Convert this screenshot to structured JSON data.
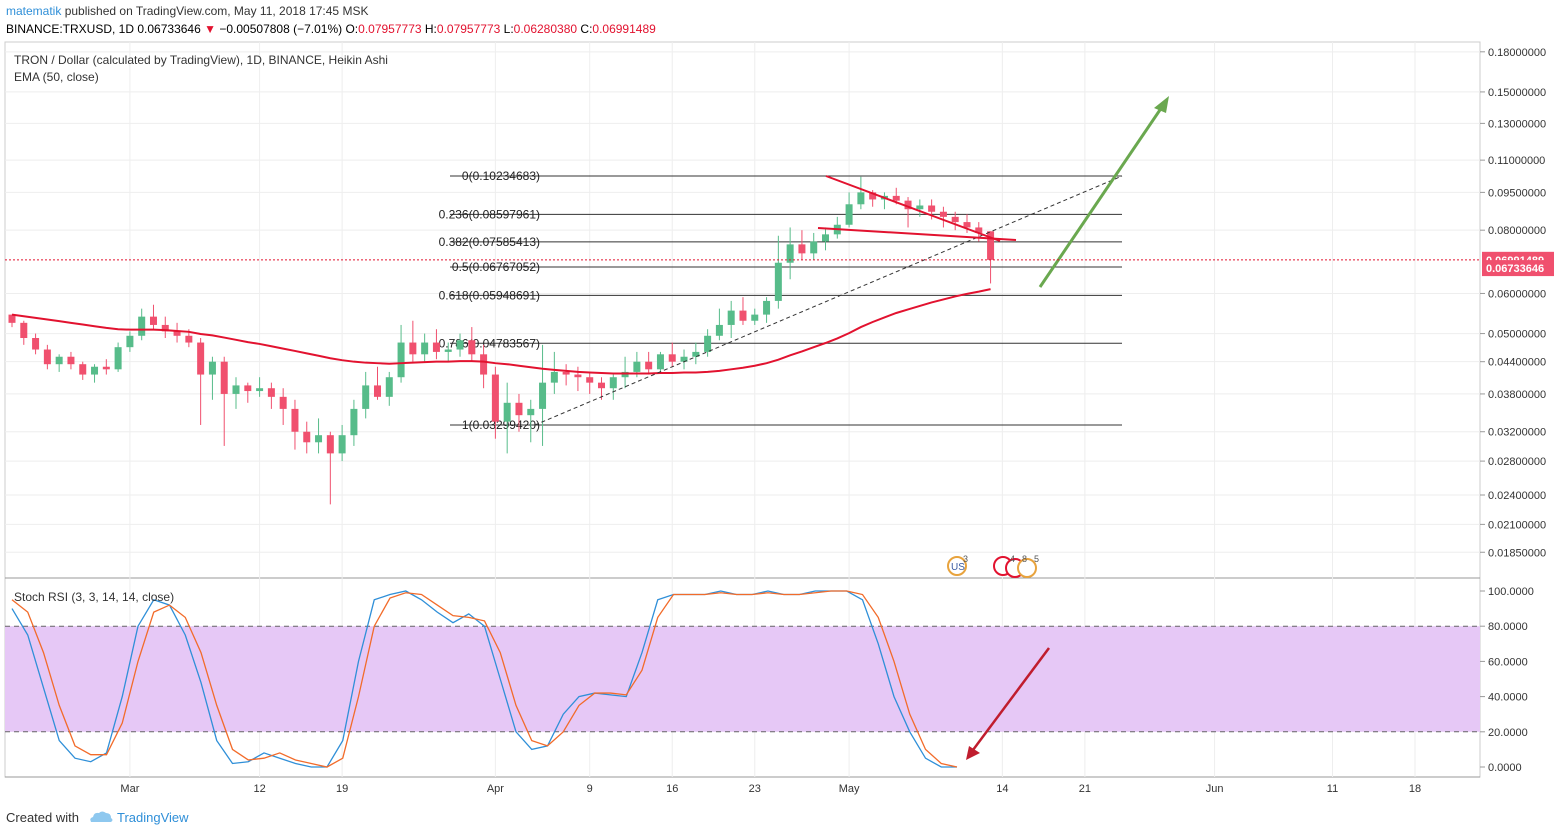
{
  "header": {
    "publisher": "matematik",
    "published_text": "published on TradingView.com, May 11, 2018 17:45 MSK",
    "symbol": "BINANCE:TRXUSD, 1D",
    "last": "0.06733646",
    "change_arrow": "▼",
    "change": "−0.00507808 (−7.01%)",
    "ohlc": {
      "o_label": "O:",
      "o": "0.07957773",
      "h_label": "H:",
      "h": "0.07957773",
      "l_label": "L:",
      "l": "0.06280380",
      "c_label": "C:",
      "c": "0.06991489"
    }
  },
  "legend": {
    "title": "TRON / Dollar (calculated by TradingView), 1D, BINANCE, Heikin Ashi",
    "ema": "EMA (50, close)",
    "stoch": "Stoch RSI (3, 3, 14, 14, close)"
  },
  "footer": {
    "created_with": "Created with",
    "brand": "TradingView"
  },
  "colors": {
    "up": "#57bc8a",
    "down": "#f0506e",
    "ema": "#e2122f",
    "k_line": "#2f8fd8",
    "d_line": "#f26b2a",
    "band": "#e6c8f6",
    "fib": "#333333",
    "arrow_up": "#6aa84f",
    "arrow_down": "#c01d2e"
  },
  "chart_data": [
    {
      "type": "candlestick",
      "title": "TRON / Dollar (calculated by TradingView), 1D, BINANCE, Heikin Ashi",
      "y_scale": "log",
      "y_ticks": [
        "0.18000000",
        "0.15000000",
        "0.13000000",
        "0.11000000",
        "0.09500000",
        "0.08000000",
        "0.06000000",
        "0.05000000",
        "0.04400000",
        "0.03800000",
        "0.03200000",
        "0.02800000",
        "0.02400000",
        "0.02100000",
        "0.01850000"
      ],
      "x_ticks": [
        "Mar",
        "12",
        "19",
        "Apr",
        "9",
        "16",
        "23",
        "May",
        "14",
        "21",
        "Jun",
        "11",
        "18"
      ],
      "price_labels": [
        "0.06991489",
        "0.06733646"
      ],
      "current_price_line": 0.0699,
      "start_date": "2018-02-19",
      "candles": [
        [
          0.0545,
          0.0545,
          0.0515,
          0.0525
        ],
        [
          0.0525,
          0.053,
          0.0475,
          0.049
        ],
        [
          0.049,
          0.05,
          0.0455,
          0.0465
        ],
        [
          0.0465,
          0.0475,
          0.0425,
          0.0435
        ],
        [
          0.0435,
          0.0455,
          0.042,
          0.045
        ],
        [
          0.045,
          0.046,
          0.0425,
          0.0435
        ],
        [
          0.0435,
          0.044,
          0.0405,
          0.0415
        ],
        [
          0.0415,
          0.0435,
          0.04,
          0.043
        ],
        [
          0.043,
          0.0445,
          0.0415,
          0.0425
        ],
        [
          0.0425,
          0.048,
          0.042,
          0.047
        ],
        [
          0.047,
          0.0505,
          0.046,
          0.0495
        ],
        [
          0.0495,
          0.056,
          0.0485,
          0.054
        ],
        [
          0.054,
          0.057,
          0.051,
          0.052
        ],
        [
          0.052,
          0.054,
          0.049,
          0.0505
        ],
        [
          0.0505,
          0.0525,
          0.048,
          0.0495
        ],
        [
          0.0495,
          0.051,
          0.047,
          0.048
        ],
        [
          0.048,
          0.049,
          0.033,
          0.0415
        ],
        [
          0.0415,
          0.045,
          0.037,
          0.044
        ],
        [
          0.044,
          0.045,
          0.03,
          0.038
        ],
        [
          0.038,
          0.041,
          0.0355,
          0.0395
        ],
        [
          0.0395,
          0.04,
          0.0365,
          0.0385
        ],
        [
          0.0385,
          0.041,
          0.0375,
          0.039
        ],
        [
          0.039,
          0.04,
          0.0355,
          0.0375
        ],
        [
          0.0375,
          0.039,
          0.033,
          0.0355
        ],
        [
          0.0355,
          0.037,
          0.0295,
          0.032
        ],
        [
          0.032,
          0.0335,
          0.029,
          0.0305
        ],
        [
          0.0305,
          0.034,
          0.029,
          0.0315
        ],
        [
          0.0315,
          0.032,
          0.023,
          0.029
        ],
        [
          0.029,
          0.033,
          0.028,
          0.0315
        ],
        [
          0.0315,
          0.037,
          0.03,
          0.0355
        ],
        [
          0.0355,
          0.042,
          0.034,
          0.0395
        ],
        [
          0.0395,
          0.043,
          0.037,
          0.0375
        ],
        [
          0.0375,
          0.042,
          0.036,
          0.041
        ],
        [
          0.041,
          0.052,
          0.04,
          0.048
        ],
        [
          0.048,
          0.053,
          0.044,
          0.0455
        ],
        [
          0.0455,
          0.05,
          0.044,
          0.048
        ],
        [
          0.048,
          0.051,
          0.0445,
          0.046
        ],
        [
          0.046,
          0.048,
          0.044,
          0.0465
        ],
        [
          0.0465,
          0.05,
          0.045,
          0.0485
        ],
        [
          0.0485,
          0.0515,
          0.044,
          0.0455
        ],
        [
          0.0455,
          0.0475,
          0.039,
          0.0415
        ],
        [
          0.0415,
          0.043,
          0.031,
          0.0335
        ],
        [
          0.0335,
          0.04,
          0.029,
          0.0365
        ],
        [
          0.0365,
          0.038,
          0.032,
          0.0345
        ],
        [
          0.0345,
          0.037,
          0.0305,
          0.0355
        ],
        [
          0.0355,
          0.0475,
          0.03,
          0.04
        ],
        [
          0.04,
          0.046,
          0.038,
          0.042
        ],
        [
          0.042,
          0.0435,
          0.0395,
          0.0415
        ],
        [
          0.0415,
          0.043,
          0.0385,
          0.041
        ],
        [
          0.041,
          0.042,
          0.038,
          0.04
        ],
        [
          0.04,
          0.041,
          0.037,
          0.039
        ],
        [
          0.039,
          0.0415,
          0.037,
          0.041
        ],
        [
          0.041,
          0.045,
          0.039,
          0.042
        ],
        [
          0.042,
          0.046,
          0.041,
          0.044
        ],
        [
          0.044,
          0.046,
          0.0415,
          0.0425
        ],
        [
          0.0425,
          0.046,
          0.042,
          0.0455
        ],
        [
          0.0455,
          0.048,
          0.043,
          0.044
        ],
        [
          0.044,
          0.0465,
          0.0425,
          0.045
        ],
        [
          0.045,
          0.048,
          0.0435,
          0.046
        ],
        [
          0.046,
          0.051,
          0.045,
          0.0495
        ],
        [
          0.0495,
          0.056,
          0.0485,
          0.052
        ],
        [
          0.052,
          0.058,
          0.049,
          0.0555
        ],
        [
          0.0555,
          0.059,
          0.052,
          0.053
        ],
        [
          0.053,
          0.056,
          0.052,
          0.0545
        ],
        [
          0.0545,
          0.059,
          0.0525,
          0.058
        ],
        [
          0.058,
          0.078,
          0.056,
          0.069
        ],
        [
          0.069,
          0.081,
          0.064,
          0.075
        ],
        [
          0.075,
          0.08,
          0.07,
          0.072
        ],
        [
          0.072,
          0.079,
          0.07,
          0.076
        ],
        [
          0.076,
          0.081,
          0.073,
          0.0785
        ],
        [
          0.0785,
          0.085,
          0.077,
          0.082
        ],
        [
          0.082,
          0.095,
          0.081,
          0.09
        ],
        [
          0.09,
          0.102,
          0.088,
          0.095
        ],
        [
          0.095,
          0.096,
          0.089,
          0.092
        ],
        [
          0.092,
          0.095,
          0.088,
          0.0935
        ],
        [
          0.0935,
          0.097,
          0.09,
          0.0915
        ],
        [
          0.0915,
          0.093,
          0.081,
          0.088
        ],
        [
          0.088,
          0.092,
          0.085,
          0.0895
        ],
        [
          0.0895,
          0.092,
          0.084,
          0.087
        ],
        [
          0.087,
          0.089,
          0.081,
          0.085
        ],
        [
          0.085,
          0.087,
          0.08,
          0.083
        ],
        [
          0.083,
          0.086,
          0.079,
          0.081
        ],
        [
          0.081,
          0.083,
          0.076,
          0.079
        ],
        [
          0.0796,
          0.0796,
          0.0628,
          0.0699
        ]
      ],
      "ema_50": [
        0.0545,
        0.0541,
        0.0537,
        0.0533,
        0.0529,
        0.0525,
        0.0521,
        0.0517,
        0.0513,
        0.051,
        0.0509,
        0.0509,
        0.0509,
        0.0508,
        0.0506,
        0.0504,
        0.0499,
        0.0496,
        0.0491,
        0.0486,
        0.0481,
        0.0477,
        0.0472,
        0.0467,
        0.0462,
        0.0457,
        0.0452,
        0.0447,
        0.0443,
        0.044,
        0.0438,
        0.0437,
        0.0436,
        0.0437,
        0.0438,
        0.0439,
        0.044,
        0.044,
        0.0441,
        0.0441,
        0.044,
        0.0437,
        0.0435,
        0.0432,
        0.0429,
        0.0426,
        0.0424,
        0.0422,
        0.042,
        0.0419,
        0.0418,
        0.0417,
        0.0417,
        0.0417,
        0.0417,
        0.0418,
        0.0418,
        0.0419,
        0.0419,
        0.042,
        0.0422,
        0.0425,
        0.0428,
        0.0432,
        0.0437,
        0.0444,
        0.0453,
        0.0461,
        0.047,
        0.0479,
        0.0489,
        0.0501,
        0.0515,
        0.0527,
        0.0538,
        0.0549,
        0.0558,
        0.0567,
        0.0576,
        0.0584,
        0.0592,
        0.0599,
        0.0605,
        0.0612
      ],
      "fibonacci": [
        {
          "level": "0",
          "price": "0.10234683"
        },
        {
          "level": "0.236",
          "price": "0.08597961"
        },
        {
          "level": "0.382",
          "price": "0.07585413"
        },
        {
          "level": "0.5",
          "price": "0.06767052"
        },
        {
          "level": "0.618",
          "price": "0.05948691"
        },
        {
          "level": "0.786",
          "price": "0.04783567"
        },
        {
          "level": "1",
          "price": "0.03299420"
        }
      ]
    },
    {
      "type": "line",
      "title": "Stoch RSI (3, 3, 14, 14, close)",
      "ylim": [
        0,
        100
      ],
      "y_ticks": [
        "100.0000",
        "80.0000",
        "60.0000",
        "40.0000",
        "20.0000",
        "0.0000"
      ],
      "band": [
        20,
        80
      ],
      "series": [
        {
          "values": [
            90,
            75,
            45,
            15,
            5,
            3,
            8,
            40,
            80,
            95,
            92,
            75,
            48,
            15,
            2,
            3,
            8,
            5,
            2,
            0,
            0,
            15,
            60,
            95,
            98,
            100,
            95,
            88,
            82,
            87,
            80,
            50,
            20,
            10,
            12,
            30,
            40,
            42,
            41,
            40,
            65,
            95,
            98,
            98,
            98,
            100,
            98,
            98,
            100,
            98,
            98,
            100,
            100,
            100,
            95,
            70,
            40,
            20,
            5,
            0,
            0
          ]
        },
        {
          "values": [
            95,
            88,
            65,
            35,
            12,
            7,
            7,
            25,
            60,
            88,
            92,
            85,
            65,
            35,
            10,
            4,
            5,
            8,
            4,
            2,
            0,
            5,
            40,
            80,
            96,
            99,
            98,
            92,
            86,
            85,
            83,
            65,
            35,
            15,
            12,
            20,
            35,
            42,
            42,
            41,
            55,
            85,
            98,
            98,
            98,
            99,
            98,
            98,
            99,
            98,
            98,
            99,
            100,
            100,
            98,
            85,
            60,
            30,
            10,
            2,
            0
          ]
        }
      ]
    }
  ]
}
